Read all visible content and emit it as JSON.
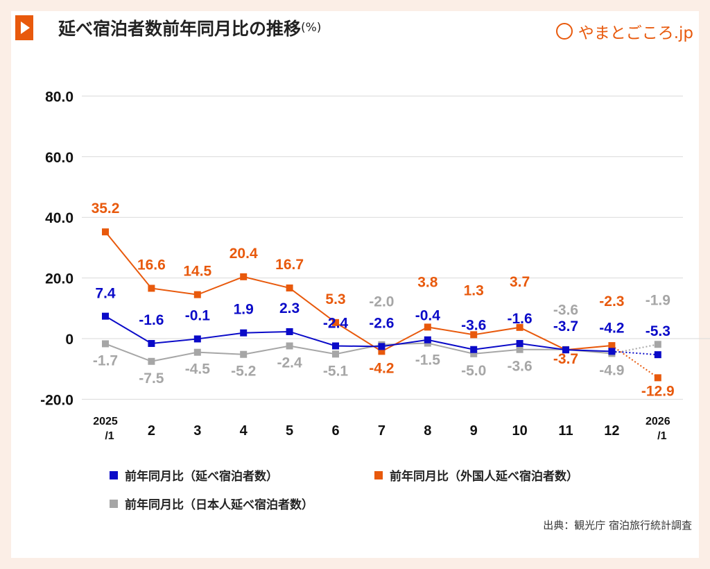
{
  "header": {
    "title": "延べ宿泊者数前年同月比の推移",
    "unit": "(%)",
    "logo_text": "やまとごころ.jp",
    "play_icon": "play-icon"
  },
  "colors": {
    "total": "#0a0ac8",
    "foreign": "#e8590c",
    "japanese": "#a6a6a6",
    "accent": "#e8590c"
  },
  "chart_data": {
    "type": "line",
    "title": "延べ宿泊者数前年同月比の推移",
    "ylabel": "(%)",
    "ylim": [
      -20,
      80
    ],
    "yticks": [
      "80.0",
      "60.0",
      "40.0",
      "20.0",
      "0",
      "-20.0"
    ],
    "ytick_values": [
      80,
      60,
      40,
      20,
      0,
      -20
    ],
    "grid": true,
    "legend_placement": "bottom",
    "categories": [
      [
        "2025",
        "/1"
      ],
      [
        "2"
      ],
      [
        "3"
      ],
      [
        "4"
      ],
      [
        "5"
      ],
      [
        "6"
      ],
      [
        "7"
      ],
      [
        "8"
      ],
      [
        "9"
      ],
      [
        "10"
      ],
      [
        "11"
      ],
      [
        "12"
      ],
      [
        "2026",
        "/1"
      ]
    ],
    "last_segment_style": "dotted",
    "series": [
      {
        "key": "total",
        "name": "前年同月比（延べ宿泊者数）",
        "values": [
          7.4,
          -1.6,
          -0.1,
          1.9,
          2.3,
          -2.4,
          -2.6,
          -0.4,
          -3.6,
          -1.6,
          -3.7,
          -4.2,
          -5.3
        ]
      },
      {
        "key": "foreign",
        "name": "前年同月比（外国人延べ宿泊者数）",
        "values": [
          35.2,
          16.6,
          14.5,
          20.4,
          16.7,
          5.3,
          -4.2,
          3.8,
          1.3,
          3.7,
          -3.7,
          -2.3,
          -12.9
        ]
      },
      {
        "key": "japanese",
        "name": "前年同月比（日本人延べ宿泊者数）",
        "values": [
          -1.7,
          -7.5,
          -4.5,
          -5.2,
          -2.4,
          -5.1,
          -2.0,
          -1.5,
          -5.0,
          -3.6,
          -3.6,
          -4.9,
          -1.9
        ]
      }
    ]
  },
  "source": "出典：観光庁 宿泊旅行統計調査"
}
